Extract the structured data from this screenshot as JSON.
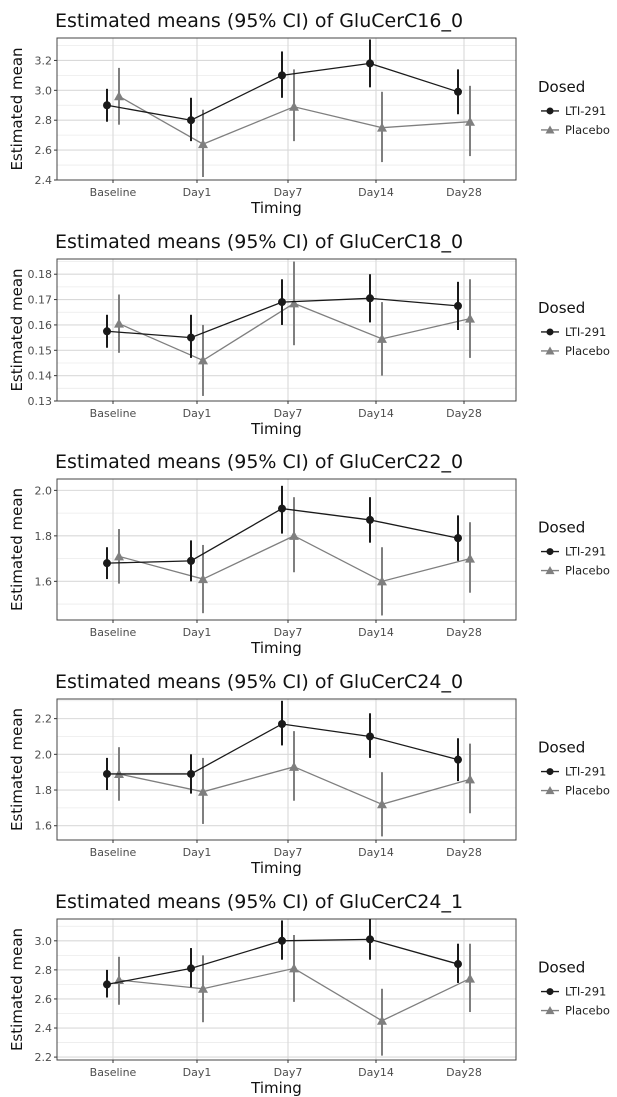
{
  "chart_data": [
    {
      "type": "line",
      "title": "Estimated means (95% CI) of GluCerC16_0",
      "xlabel": "Timing",
      "ylabel": "Estimated mean",
      "categories": [
        "Baseline",
        "Day1",
        "Day7",
        "Day14",
        "Day28"
      ],
      "ylim": [
        2.4,
        3.35
      ],
      "yticks": [
        "2.4",
        "2.6",
        "2.8",
        "3.0",
        "3.2"
      ],
      "legend_title": "Dosed",
      "grid": true,
      "legend_position": "right",
      "series": [
        {
          "name": "LTI-291",
          "marker": "circle",
          "color": "#1a1a1a",
          "values": [
            2.9,
            2.8,
            3.1,
            3.18,
            2.99
          ],
          "lower": [
            2.79,
            2.66,
            2.95,
            3.02,
            2.84
          ],
          "upper": [
            3.01,
            2.95,
            3.26,
            3.34,
            3.14
          ]
        },
        {
          "name": "Placebo",
          "marker": "triangle",
          "color": "#7f7f7f",
          "values": [
            2.96,
            2.64,
            2.89,
            2.75,
            2.79
          ],
          "lower": [
            2.77,
            2.42,
            2.66,
            2.52,
            2.56
          ],
          "upper": [
            3.15,
            2.87,
            3.14,
            2.99,
            3.03
          ]
        }
      ]
    },
    {
      "type": "line",
      "title": "Estimated means (95% CI) of GluCerC18_0",
      "xlabel": "Timing",
      "ylabel": "Estimated mean",
      "categories": [
        "Baseline",
        "Day1",
        "Day7",
        "Day14",
        "Day28"
      ],
      "ylim": [
        0.13,
        0.186
      ],
      "yticks": [
        "0.13",
        "0.14",
        "0.15",
        "0.16",
        "0.17",
        "0.18"
      ],
      "legend_title": "Dosed",
      "grid": true,
      "legend_position": "right",
      "series": [
        {
          "name": "LTI-291",
          "marker": "circle",
          "color": "#1a1a1a",
          "values": [
            0.1575,
            0.155,
            0.169,
            0.1705,
            0.1675
          ],
          "lower": [
            0.151,
            0.147,
            0.16,
            0.161,
            0.158
          ],
          "upper": [
            0.164,
            0.164,
            0.178,
            0.18,
            0.177
          ]
        },
        {
          "name": "Placebo",
          "marker": "triangle",
          "color": "#7f7f7f",
          "values": [
            0.1605,
            0.146,
            0.1685,
            0.1545,
            0.1625
          ],
          "lower": [
            0.149,
            0.132,
            0.152,
            0.14,
            0.147
          ],
          "upper": [
            0.172,
            0.16,
            0.185,
            0.169,
            0.178
          ]
        }
      ]
    },
    {
      "type": "line",
      "title": "Estimated means (95% CI) of GluCerC22_0",
      "xlabel": "Timing",
      "ylabel": "Estimated mean",
      "categories": [
        "Baseline",
        "Day1",
        "Day7",
        "Day14",
        "Day28"
      ],
      "ylim": [
        1.43,
        2.05
      ],
      "yticks": [
        "1.6",
        "1.8",
        "2.0"
      ],
      "legend_title": "Dosed",
      "grid": true,
      "legend_position": "right",
      "series": [
        {
          "name": "LTI-291",
          "marker": "circle",
          "color": "#1a1a1a",
          "values": [
            1.68,
            1.69,
            1.92,
            1.87,
            1.79
          ],
          "lower": [
            1.61,
            1.6,
            1.81,
            1.77,
            1.69
          ],
          "upper": [
            1.75,
            1.78,
            2.02,
            1.97,
            1.89
          ]
        },
        {
          "name": "Placebo",
          "marker": "triangle",
          "color": "#7f7f7f",
          "values": [
            1.71,
            1.61,
            1.8,
            1.6,
            1.7
          ],
          "lower": [
            1.59,
            1.46,
            1.64,
            1.45,
            1.55
          ],
          "upper": [
            1.83,
            1.76,
            1.97,
            1.75,
            1.86
          ]
        }
      ]
    },
    {
      "type": "line",
      "title": "Estimated means (95% CI) of GluCerC24_0",
      "xlabel": "Timing",
      "ylabel": "Estimated mean",
      "categories": [
        "Baseline",
        "Day1",
        "Day7",
        "Day14",
        "Day28"
      ],
      "ylim": [
        1.52,
        2.31
      ],
      "yticks": [
        "1.6",
        "1.8",
        "2.0",
        "2.2"
      ],
      "legend_title": "Dosed",
      "grid": true,
      "legend_position": "right",
      "series": [
        {
          "name": "LTI-291",
          "marker": "circle",
          "color": "#1a1a1a",
          "values": [
            1.89,
            1.89,
            2.17,
            2.1,
            1.97
          ],
          "lower": [
            1.8,
            1.78,
            2.05,
            1.98,
            1.85
          ],
          "upper": [
            1.98,
            2.0,
            2.3,
            2.23,
            2.09
          ]
        },
        {
          "name": "Placebo",
          "marker": "triangle",
          "color": "#7f7f7f",
          "values": [
            1.89,
            1.79,
            1.93,
            1.72,
            1.86
          ],
          "lower": [
            1.74,
            1.61,
            1.74,
            1.54,
            1.67
          ],
          "upper": [
            2.04,
            1.98,
            2.13,
            1.9,
            2.06
          ]
        }
      ]
    },
    {
      "type": "line",
      "title": "Estimated means (95% CI) of GluCerC24_1",
      "xlabel": "Timing",
      "ylabel": "Estimated mean",
      "categories": [
        "Baseline",
        "Day1",
        "Day7",
        "Day14",
        "Day28"
      ],
      "ylim": [
        2.18,
        3.15
      ],
      "yticks": [
        "2.2",
        "2.4",
        "2.6",
        "2.8",
        "3.0"
      ],
      "legend_title": "Dosed",
      "grid": true,
      "legend_position": "right",
      "series": [
        {
          "name": "LTI-291",
          "marker": "circle",
          "color": "#1a1a1a",
          "values": [
            2.7,
            2.81,
            3.0,
            3.01,
            2.84
          ],
          "lower": [
            2.61,
            2.68,
            2.87,
            2.87,
            2.71
          ],
          "upper": [
            2.8,
            2.95,
            3.14,
            3.15,
            2.98
          ]
        },
        {
          "name": "Placebo",
          "marker": "triangle",
          "color": "#7f7f7f",
          "values": [
            2.73,
            2.67,
            2.81,
            2.45,
            2.74
          ],
          "lower": [
            2.56,
            2.44,
            2.58,
            2.21,
            2.51
          ],
          "upper": [
            2.89,
            2.9,
            3.04,
            2.67,
            2.98
          ]
        }
      ]
    }
  ]
}
